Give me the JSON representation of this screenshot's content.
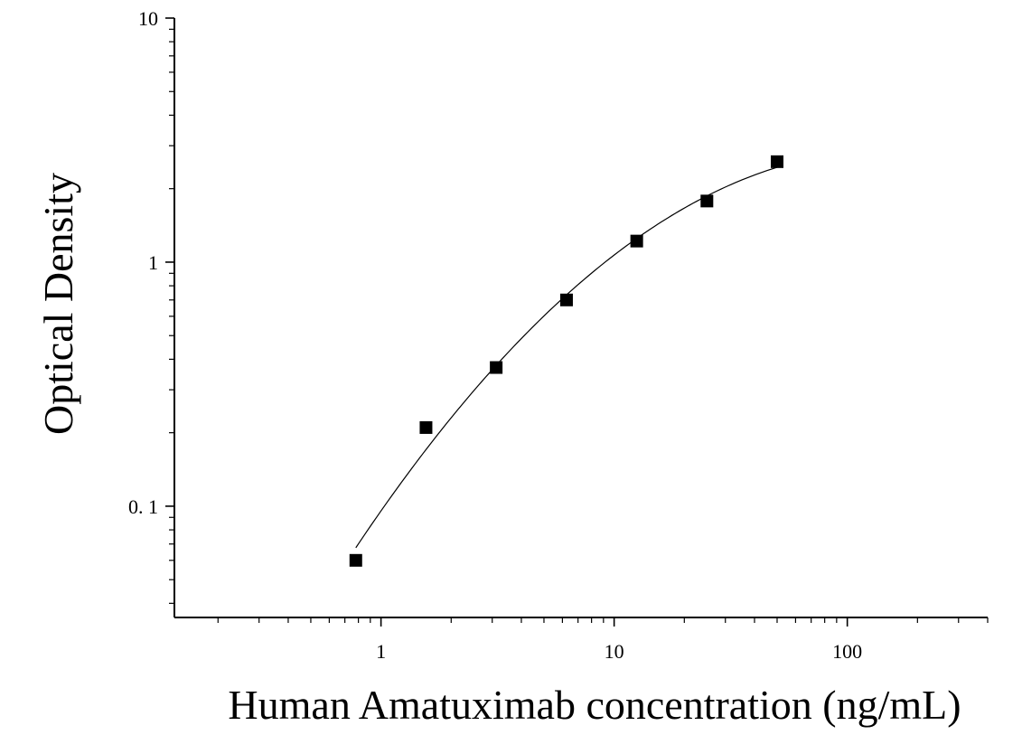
{
  "chart_data": {
    "type": "scatter",
    "xlabel": "Human Amatuximab concentration (ng/mL)",
    "ylabel": "Optical Density",
    "xscale": "log",
    "yscale": "log",
    "xlim": [
      0.13,
      400
    ],
    "ylim": [
      0.035,
      10
    ],
    "x_ticks": [
      {
        "value": 1,
        "label": "1"
      },
      {
        "value": 10,
        "label": "10"
      },
      {
        "value": 100,
        "label": "100"
      }
    ],
    "y_ticks": [
      {
        "value": 0.1,
        "label": "0. 1"
      },
      {
        "value": 1,
        "label": "1"
      },
      {
        "value": 10,
        "label": "10"
      }
    ],
    "grid": false,
    "series": [
      {
        "marker": "square",
        "color": "#000000",
        "points": [
          {
            "x": 0.78,
            "y": 0.06
          },
          {
            "x": 1.56,
            "y": 0.21
          },
          {
            "x": 3.12,
            "y": 0.37
          },
          {
            "x": 6.25,
            "y": 0.7
          },
          {
            "x": 12.5,
            "y": 1.22
          },
          {
            "x": 25,
            "y": 1.78
          },
          {
            "x": 50,
            "y": 2.58
          }
        ]
      }
    ],
    "fit_curve": {
      "type": "smooth",
      "color": "#000000"
    }
  }
}
